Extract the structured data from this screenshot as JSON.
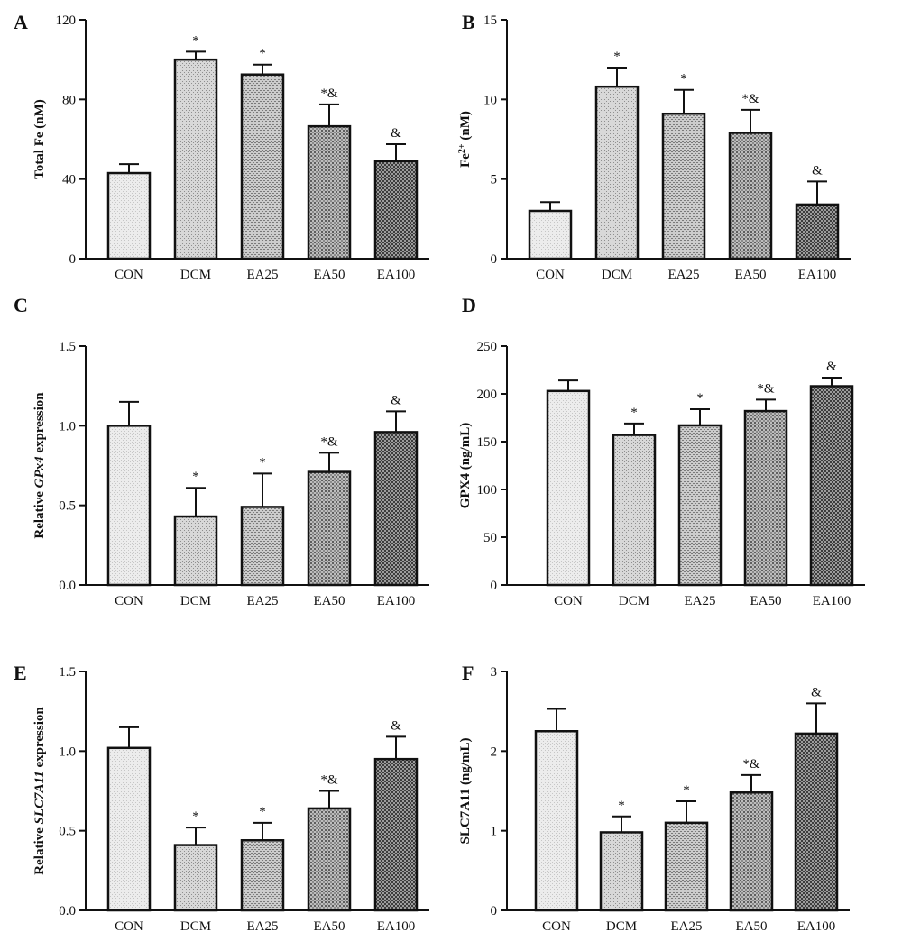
{
  "panels": [
    {
      "letter": "A",
      "type": "bar",
      "ylabel_parts": [
        {
          "text": "Total Fe (nM)"
        }
      ],
      "categories": [
        "CON",
        "DCM",
        "EA25",
        "EA50",
        "EA100"
      ],
      "values": [
        43,
        100,
        92.5,
        66.5,
        49
      ],
      "errors": [
        4.5,
        4,
        5,
        11,
        8.5
      ],
      "annotations": [
        "",
        "*",
        "*",
        "*&",
        "&"
      ],
      "ylim": [
        0,
        120
      ],
      "yticks": [
        0,
        40,
        80,
        120
      ],
      "ytick_labels": [
        "0",
        "40",
        "80",
        "120"
      ]
    },
    {
      "letter": "B",
      "type": "bar",
      "ylabel_parts": [
        {
          "text": "Fe"
        },
        {
          "text": "2+",
          "sup": true
        },
        {
          "text": " (nM)"
        }
      ],
      "categories": [
        "CON",
        "DCM",
        "EA25",
        "EA50",
        "EA100"
      ],
      "values": [
        3,
        10.8,
        9.1,
        7.9,
        3.4
      ],
      "errors": [
        0.55,
        1.2,
        1.5,
        1.45,
        1.45
      ],
      "annotations": [
        "",
        "*",
        "*",
        "*&",
        "&"
      ],
      "ylim": [
        0,
        15
      ],
      "yticks": [
        0,
        5,
        10,
        15
      ],
      "ytick_labels": [
        "0",
        "5",
        "10",
        "15"
      ]
    },
    {
      "letter": "C",
      "type": "bar",
      "ylabel_parts": [
        {
          "text": "Relative "
        },
        {
          "text": "GPx4",
          "italic": true
        },
        {
          "text": " expression"
        }
      ],
      "categories": [
        "CON",
        "DCM",
        "EA25",
        "EA50",
        "EA100"
      ],
      "values": [
        1.0,
        0.43,
        0.49,
        0.71,
        0.96
      ],
      "errors": [
        0.15,
        0.18,
        0.21,
        0.12,
        0.13
      ],
      "annotations": [
        "",
        "*",
        "*",
        "*&",
        "&"
      ],
      "ylim": [
        0,
        1.5
      ],
      "yticks": [
        0,
        0.5,
        1.0,
        1.5
      ],
      "ytick_labels": [
        "0.0",
        "0.5",
        "1.0",
        "1.5"
      ]
    },
    {
      "letter": "D",
      "type": "bar",
      "ylabel_parts": [
        {
          "text": "GPX4 (ng/mL)"
        }
      ],
      "categories": [
        "CON",
        "DCM",
        "EA25",
        "EA50",
        "EA100"
      ],
      "values": [
        203,
        157,
        167,
        182,
        208
      ],
      "errors": [
        11,
        12,
        17,
        12,
        9
      ],
      "annotations": [
        "",
        "*",
        "*",
        "*&",
        "&"
      ],
      "ylim": [
        0,
        250
      ],
      "yticks": [
        0,
        50,
        100,
        150,
        200,
        250
      ],
      "ytick_labels": [
        "0",
        "50",
        "100",
        "150",
        "200",
        "250"
      ]
    },
    {
      "letter": "E",
      "type": "bar",
      "ylabel_parts": [
        {
          "text": "Relative "
        },
        {
          "text": "SLC7A11",
          "italic": true
        },
        {
          "text": " expression"
        }
      ],
      "categories": [
        "CON",
        "DCM",
        "EA25",
        "EA50",
        "EA100"
      ],
      "values": [
        1.02,
        0.41,
        0.44,
        0.64,
        0.95
      ],
      "errors": [
        0.13,
        0.11,
        0.11,
        0.11,
        0.14
      ],
      "annotations": [
        "",
        "*",
        "*",
        "*&",
        "&"
      ],
      "ylim": [
        0,
        1.5
      ],
      "yticks": [
        0,
        0.5,
        1.0,
        1.5
      ],
      "ytick_labels": [
        "0.0",
        "0.5",
        "1.0",
        "1.5"
      ]
    },
    {
      "letter": "F",
      "type": "bar",
      "ylabel_parts": [
        {
          "text": "SLC7A11 (ng/mL)"
        }
      ],
      "categories": [
        "CON",
        "DCM",
        "EA25",
        "EA50",
        "EA100"
      ],
      "values": [
        2.25,
        0.98,
        1.1,
        1.48,
        2.22
      ],
      "errors": [
        0.28,
        0.2,
        0.27,
        0.22,
        0.38
      ],
      "annotations": [
        "",
        "*",
        "*",
        "*&",
        "&"
      ],
      "ylim": [
        0,
        3
      ],
      "yticks": [
        0,
        1,
        2,
        3
      ],
      "ytick_labels": [
        "0",
        "1",
        "2",
        "3"
      ]
    }
  ],
  "chart_data": [
    {
      "type": "bar",
      "title": "A",
      "ylabel": "Total Fe (nM)",
      "categories": [
        "CON",
        "DCM",
        "EA25",
        "EA50",
        "EA100"
      ],
      "values": [
        43,
        100,
        92.5,
        66.5,
        49
      ],
      "errors": [
        4.5,
        4,
        5,
        11,
        8.5
      ],
      "ylim": [
        0,
        120
      ]
    },
    {
      "type": "bar",
      "title": "B",
      "ylabel": "Fe2+ (nM)",
      "categories": [
        "CON",
        "DCM",
        "EA25",
        "EA50",
        "EA100"
      ],
      "values": [
        3,
        10.8,
        9.1,
        7.9,
        3.4
      ],
      "errors": [
        0.55,
        1.2,
        1.5,
        1.45,
        1.45
      ],
      "ylim": [
        0,
        15
      ]
    },
    {
      "type": "bar",
      "title": "C",
      "ylabel": "Relative GPx4 expression",
      "categories": [
        "CON",
        "DCM",
        "EA25",
        "EA50",
        "EA100"
      ],
      "values": [
        1.0,
        0.43,
        0.49,
        0.71,
        0.96
      ],
      "errors": [
        0.15,
        0.18,
        0.21,
        0.12,
        0.13
      ],
      "ylim": [
        0,
        1.5
      ]
    },
    {
      "type": "bar",
      "title": "D",
      "ylabel": "GPX4 (ng/mL)",
      "categories": [
        "CON",
        "DCM",
        "EA25",
        "EA50",
        "EA100"
      ],
      "values": [
        203,
        157,
        167,
        182,
        208
      ],
      "errors": [
        11,
        12,
        17,
        12,
        9
      ],
      "ylim": [
        0,
        250
      ]
    },
    {
      "type": "bar",
      "title": "E",
      "ylabel": "Relative SLC7A11 expression",
      "categories": [
        "CON",
        "DCM",
        "EA25",
        "EA50",
        "EA100"
      ],
      "values": [
        1.02,
        0.41,
        0.44,
        0.64,
        0.95
      ],
      "errors": [
        0.13,
        0.11,
        0.11,
        0.11,
        0.14
      ],
      "ylim": [
        0,
        1.5
      ]
    },
    {
      "type": "bar",
      "title": "F",
      "ylabel": "SLC7A11 (ng/mL)",
      "categories": [
        "CON",
        "DCM",
        "EA25",
        "EA50",
        "EA100"
      ],
      "values": [
        2.25,
        0.98,
        1.1,
        1.48,
        2.22
      ],
      "errors": [
        0.28,
        0.2,
        0.27,
        0.22,
        0.38
      ],
      "ylim": [
        0,
        3
      ]
    }
  ]
}
